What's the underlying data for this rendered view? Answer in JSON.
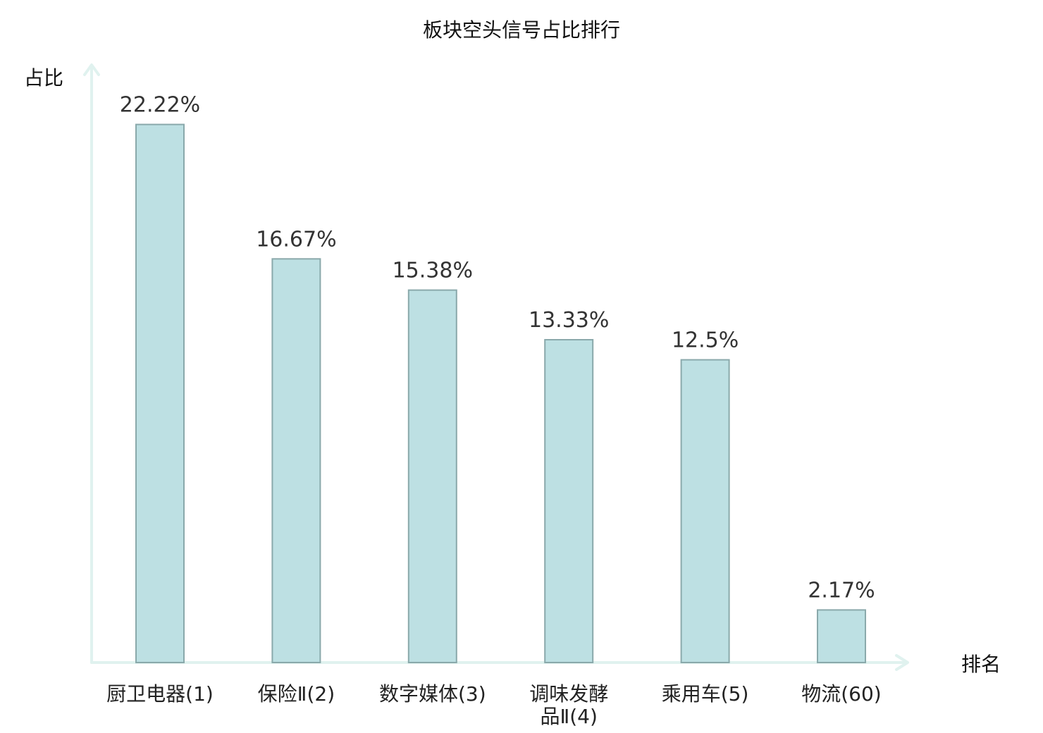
{
  "chart_data": {
    "type": "bar",
    "title": "板块空头信号占比排行",
    "ylabel": "占比",
    "xlabel": "排名",
    "categories": [
      [
        "厨卫电器(1)"
      ],
      [
        "保险Ⅱ(2)"
      ],
      [
        "数字媒体(3)"
      ],
      [
        "调味发酵",
        "品Ⅱ(4)"
      ],
      [
        "乘用车(5)"
      ],
      [
        "物流(60)"
      ]
    ],
    "values": [
      22.22,
      16.67,
      15.38,
      13.33,
      12.5,
      2.17
    ],
    "value_labels": [
      "22.22%",
      "16.67%",
      "15.38%",
      "13.33%",
      "12.5%",
      "2.17%"
    ],
    "ylim": [
      0,
      24.74
    ],
    "grid": false,
    "colors": {
      "bar_fill": "#bde0e3",
      "bar_stroke": "#8aa9ab",
      "axis": "#e0f2ef",
      "highlight_label": "#e0141e",
      "label": "#222222",
      "value_label": "#333333"
    },
    "highlight_index": 5
  }
}
